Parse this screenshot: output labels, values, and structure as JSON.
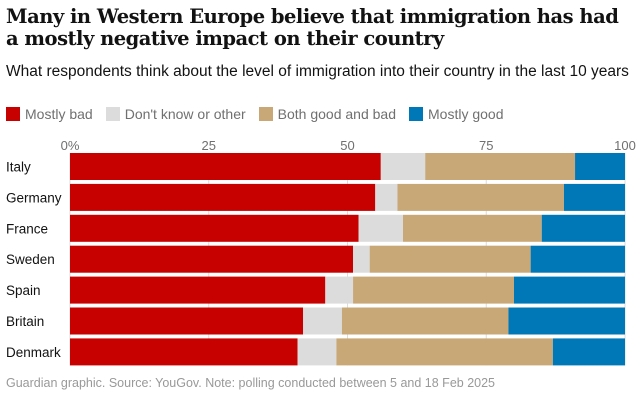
{
  "chart_data": {
    "type": "bar",
    "orientation": "horizontal",
    "stacked": true,
    "title": "Many in Western Europe believe that immigration has had a mostly negative impact on their country",
    "subtitle": "What respondents think about the level of immigration into their country in the last 10 years",
    "categories": [
      "Italy",
      "Germany",
      "France",
      "Sweden",
      "Spain",
      "Britain",
      "Denmark"
    ],
    "series": [
      {
        "name": "Mostly bad",
        "color": "#c70000",
        "values": [
          56,
          55,
          52,
          51,
          46,
          42,
          41
        ]
      },
      {
        "name": "Don't know or other",
        "color": "#dcdcdc",
        "values": [
          8,
          4,
          8,
          3,
          5,
          7,
          7
        ]
      },
      {
        "name": "Both good and bad",
        "color": "#c9a878",
        "values": [
          27,
          30,
          25,
          29,
          29,
          30,
          39
        ]
      },
      {
        "name": "Mostly good",
        "color": "#0077b6",
        "values": [
          9,
          11,
          15,
          17,
          20,
          21,
          13
        ]
      }
    ],
    "xlim": [
      0,
      100
    ],
    "x_ticks": [
      "0%",
      "25",
      "50",
      "75",
      "100"
    ],
    "grid": true,
    "legend": "top-left",
    "source": "Guardian graphic. Source: YouGov. Note: polling conducted between 5 and 18 Feb 2025"
  }
}
